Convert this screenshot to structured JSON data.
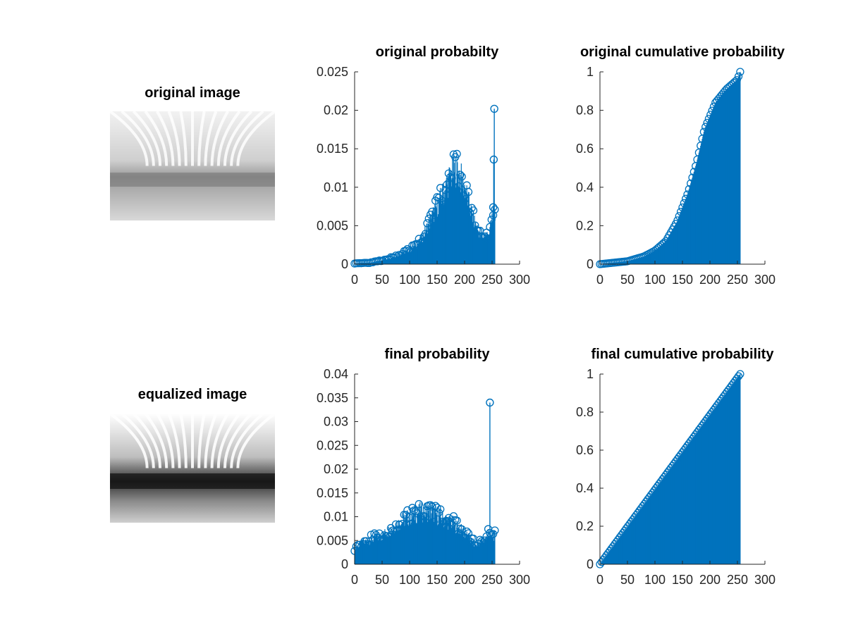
{
  "panels": {
    "original_image": {
      "title": "original image"
    },
    "equalized_image": {
      "title": "equalized image"
    }
  },
  "colors": {
    "stem": "#0072bd",
    "axis": "#262626",
    "background": "#ffffff"
  },
  "chart_data": [
    {
      "id": "orig_prob",
      "type": "stem",
      "title": "original probabilty",
      "xlabel": "",
      "ylabel": "",
      "xlim": [
        0,
        300
      ],
      "ylim": [
        0,
        0.025
      ],
      "xticks": [
        0,
        50,
        100,
        150,
        200,
        250,
        300
      ],
      "yticks": [
        0,
        0.005,
        0.01,
        0.015,
        0.02,
        0.025
      ],
      "ytick_labels": [
        "0",
        "0.005",
        "0.01",
        "0.015",
        "0.02",
        "0.025"
      ],
      "x_range": [
        0,
        255
      ],
      "profile": [
        [
          0,
          0.0001
        ],
        [
          30,
          0.0002
        ],
        [
          50,
          0.0005
        ],
        [
          80,
          0.0012
        ],
        [
          100,
          0.0018
        ],
        [
          120,
          0.003
        ],
        [
          140,
          0.006
        ],
        [
          160,
          0.009
        ],
        [
          175,
          0.0115
        ],
        [
          185,
          0.0125
        ],
        [
          200,
          0.01
        ],
        [
          215,
          0.006
        ],
        [
          230,
          0.0035
        ],
        [
          245,
          0.004
        ],
        [
          250,
          0.006
        ]
      ],
      "spikes": [
        [
          252,
          0.0074
        ],
        [
          253,
          0.0136
        ],
        [
          254,
          0.0202
        ]
      ]
    },
    {
      "id": "orig_cum",
      "type": "stem",
      "title": "original cumulative probability",
      "xlabel": "",
      "ylabel": "",
      "xlim": [
        0,
        300
      ],
      "ylim": [
        0,
        1
      ],
      "xticks": [
        0,
        50,
        100,
        150,
        200,
        250,
        300
      ],
      "yticks": [
        0,
        0.2,
        0.4,
        0.6,
        0.8,
        1
      ],
      "ytick_labels": [
        "0",
        "0.2",
        "0.4",
        "0.6",
        "0.8",
        "1"
      ],
      "x_range": [
        0,
        255
      ],
      "profile": [
        [
          0,
          0.0
        ],
        [
          50,
          0.015
        ],
        [
          80,
          0.04
        ],
        [
          100,
          0.07
        ],
        [
          120,
          0.12
        ],
        [
          140,
          0.22
        ],
        [
          160,
          0.37
        ],
        [
          175,
          0.52
        ],
        [
          190,
          0.7
        ],
        [
          210,
          0.84
        ],
        [
          230,
          0.91
        ],
        [
          250,
          0.96
        ],
        [
          255,
          1.0
        ]
      ],
      "spikes": []
    },
    {
      "id": "final_prob",
      "type": "stem",
      "title": "final probability",
      "xlabel": "",
      "ylabel": "",
      "xlim": [
        0,
        300
      ],
      "ylim": [
        0,
        0.04
      ],
      "xticks": [
        0,
        50,
        100,
        150,
        200,
        250,
        300
      ],
      "yticks": [
        0,
        0.005,
        0.01,
        0.015,
        0.02,
        0.025,
        0.03,
        0.035,
        0.04
      ],
      "ytick_labels": [
        "0",
        "0.005",
        "0.01",
        "0.015",
        "0.02",
        "0.025",
        "0.03",
        "0.035",
        "0.04"
      ],
      "x_range": [
        0,
        255
      ],
      "profile": [
        [
          0,
          0.0035
        ],
        [
          25,
          0.005
        ],
        [
          50,
          0.006
        ],
        [
          80,
          0.0085
        ],
        [
          100,
          0.01
        ],
        [
          120,
          0.011
        ],
        [
          140,
          0.011
        ],
        [
          160,
          0.0095
        ],
        [
          180,
          0.0085
        ],
        [
          200,
          0.0065
        ],
        [
          220,
          0.004
        ],
        [
          235,
          0.005
        ],
        [
          245,
          0.006
        ]
      ],
      "spikes": [
        [
          243,
          0.0074
        ],
        [
          246,
          0.034
        ]
      ]
    },
    {
      "id": "final_cum",
      "type": "stem",
      "title": "final cumulative probability",
      "xlabel": "",
      "ylabel": "",
      "xlim": [
        0,
        300
      ],
      "ylim": [
        0,
        1
      ],
      "xticks": [
        0,
        50,
        100,
        150,
        200,
        250,
        300
      ],
      "yticks": [
        0,
        0.2,
        0.4,
        0.6,
        0.8,
        1
      ],
      "ytick_labels": [
        "0",
        "0.2",
        "0.4",
        "0.6",
        "0.8",
        "1"
      ],
      "x_range": [
        0,
        255
      ],
      "profile": [
        [
          0,
          0.0
        ],
        [
          255,
          1.0
        ]
      ],
      "spikes": []
    }
  ]
}
